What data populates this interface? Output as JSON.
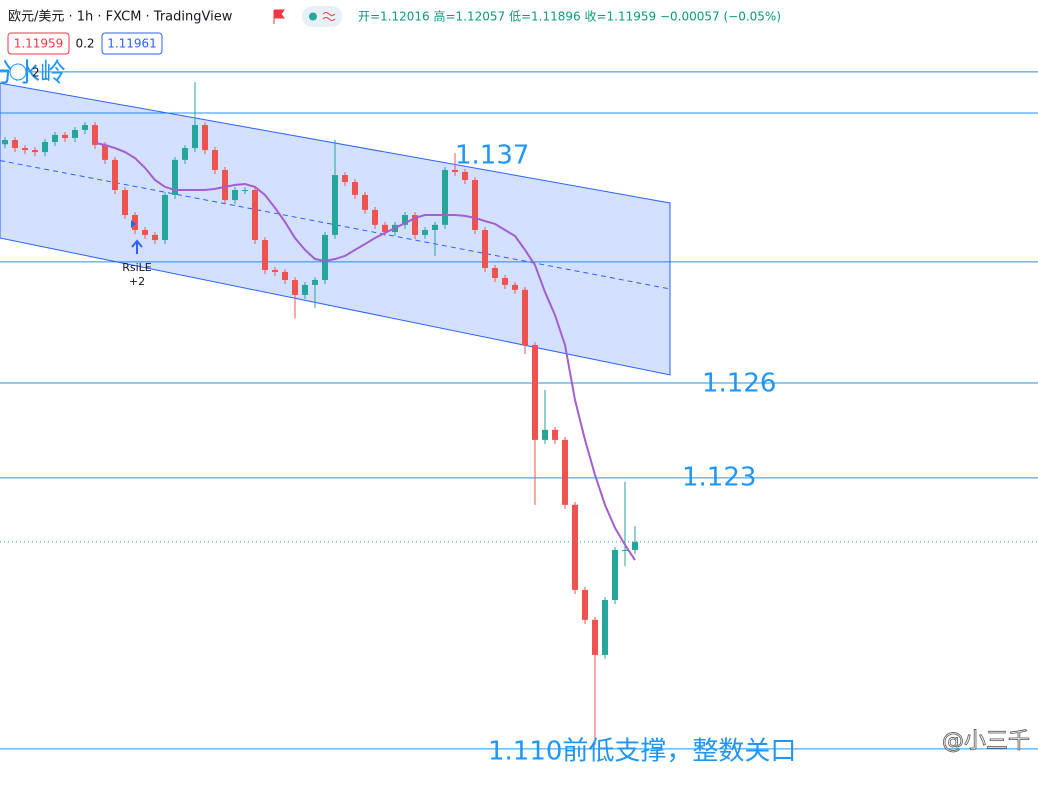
{
  "header": {
    "symbol": "欧元/美元 · 1h · FXCM · TradingView",
    "ohlc": "开=1.12016 高=1.12057 低=1.11896 收=1.11959 −0.00057 (−0.05%)",
    "bid": "1.11959",
    "spread": "0.2",
    "ask": "1.11961"
  },
  "chart_data": {
    "type": "candlestick",
    "xlim": [
      -0.5,
      103.3
    ],
    "ylim": [
      1.10857,
      1.14386
    ],
    "up_color": "#26a69a",
    "down_color": "#ef5350",
    "ma_color": "#a35fd0",
    "line_color": "#2196f3",
    "open": [
      1.1374,
      1.13759,
      1.13723,
      1.13714,
      1.13705,
      1.1375,
      1.13782,
      1.13768,
      1.13804,
      1.13826,
      1.13737,
      1.1367,
      1.13535,
      1.13423,
      1.13356,
      1.13334,
      1.13311,
      1.13513,
      1.1367,
      1.13723,
      1.13826,
      1.13714,
      1.13625,
      1.1349,
      1.13535,
      1.13535,
      1.13311,
      1.13177,
      1.13168,
      1.13132,
      1.13065,
      1.1311,
      1.13132,
      1.13334,
      1.13602,
      1.13571,
      1.13513,
      1.13446,
      1.13379,
      1.13347,
      1.13379,
      1.13423,
      1.13334,
      1.13356,
      1.13379,
      1.13625,
      1.13616,
      1.1358,
      1.13356,
      1.13186,
      1.13141,
      1.1311,
      1.13088,
      1.12841,
      1.12416,
      1.12461,
      1.12416,
      1.12125,
      1.11744,
      1.1161,
      1.11453,
      1.11699,
      1.11923,
      1.11923
    ],
    "high": [
      1.13772,
      1.13772,
      1.13736,
      1.13727,
      1.13763,
      1.13795,
      1.13795,
      1.13817,
      1.13839,
      1.13839,
      1.1375,
      1.13683,
      1.13548,
      1.13436,
      1.13369,
      1.13347,
      1.13526,
      1.13683,
      1.13736,
      1.14019,
      1.13839,
      1.13727,
      1.13638,
      1.13548,
      1.13548,
      1.13548,
      1.13324,
      1.1319,
      1.13181,
      1.13145,
      1.13123,
      1.13145,
      1.13347,
      1.1376,
      1.13615,
      1.13584,
      1.13526,
      1.13459,
      1.13392,
      1.13392,
      1.13436,
      1.13436,
      1.13369,
      1.13392,
      1.13638,
      1.137,
      1.13629,
      1.13593,
      1.13369,
      1.13199,
      1.13154,
      1.13123,
      1.13101,
      1.12854,
      1.1264,
      1.12474,
      1.12429,
      1.12138,
      1.11757,
      1.11623,
      1.11712,
      1.11936,
      1.12228,
      1.1203
    ],
    "low": [
      1.13722,
      1.13705,
      1.13696,
      1.13687,
      1.13687,
      1.13732,
      1.1375,
      1.1375,
      1.13786,
      1.13719,
      1.13652,
      1.13517,
      1.13405,
      1.13338,
      1.13316,
      1.13293,
      1.13293,
      1.13495,
      1.13652,
      1.13705,
      1.13696,
      1.13607,
      1.13472,
      1.13472,
      1.13517,
      1.13293,
      1.13159,
      1.1315,
      1.13114,
      1.1296,
      1.13047,
      1.13007,
      1.13114,
      1.13316,
      1.13553,
      1.13495,
      1.13428,
      1.13361,
      1.13329,
      1.13329,
      1.13361,
      1.13316,
      1.13316,
      1.1324,
      1.13361,
      1.13598,
      1.13562,
      1.13338,
      1.13168,
      1.13123,
      1.13092,
      1.1307,
      1.128,
      1.12125,
      1.12398,
      1.12398,
      1.12107,
      1.11726,
      1.11592,
      1.1105,
      1.11435,
      1.11681,
      1.1185,
      1.11905
    ],
    "close": [
      1.13759,
      1.13723,
      1.13714,
      1.13705,
      1.1375,
      1.13782,
      1.13768,
      1.13804,
      1.13826,
      1.13737,
      1.1367,
      1.13535,
      1.13423,
      1.13356,
      1.13334,
      1.13311,
      1.13513,
      1.1367,
      1.13723,
      1.13826,
      1.13714,
      1.13625,
      1.1349,
      1.13535,
      1.13535,
      1.13311,
      1.13177,
      1.13168,
      1.13132,
      1.13065,
      1.1311,
      1.13132,
      1.13334,
      1.13602,
      1.13571,
      1.13513,
      1.13446,
      1.13379,
      1.13347,
      1.13379,
      1.13423,
      1.13334,
      1.13356,
      1.13379,
      1.13625,
      1.13616,
      1.1358,
      1.13356,
      1.13186,
      1.13141,
      1.1311,
      1.13088,
      1.12841,
      1.12416,
      1.12461,
      1.12416,
      1.12125,
      1.11744,
      1.1161,
      1.11453,
      1.11699,
      1.11923,
      1.11923,
      1.11959
    ],
    "ma": [
      null,
      null,
      null,
      null,
      null,
      null,
      null,
      null,
      null,
      1.13746,
      1.13737,
      1.13723,
      1.13705,
      1.13678,
      1.13634,
      1.1358,
      1.13549,
      1.13535,
      1.13535,
      1.13535,
      1.13535,
      1.1354,
      1.13549,
      1.13558,
      1.13562,
      1.13549,
      1.13513,
      1.13455,
      1.13392,
      1.1332,
      1.13267,
      1.13226,
      1.13217,
      1.13226,
      1.1324,
      1.13267,
      1.13293,
      1.1332,
      1.13343,
      1.13365,
      1.13387,
      1.1341,
      1.13423,
      1.13423,
      1.13423,
      1.13423,
      1.13419,
      1.1341,
      1.13396,
      1.13383,
      1.13356,
      1.13329,
      1.13267,
      1.13199,
      1.13078,
      1.12975,
      1.12841,
      1.12595,
      1.12416,
      1.12259,
      1.12125,
      1.12022,
      1.11946,
      1.11878
    ],
    "hlines": [
      1.14064,
      1.1388,
      1.13213,
      1.12671,
      1.12246,
      1.11032
    ],
    "channel": {
      "x": [
        -0.5,
        66.5
      ],
      "upper": [
        1.14014,
        1.13477
      ],
      "lower": [
        1.1332,
        1.12707
      ]
    },
    "annotations": [
      "分水岭",
      "1.137",
      "1.126",
      "1.123",
      "1.110前低支撑，整数关口"
    ],
    "signal": {
      "label": "RsiLE",
      "count": "+2"
    },
    "badge": "2",
    "watermark": "@小三千"
  }
}
